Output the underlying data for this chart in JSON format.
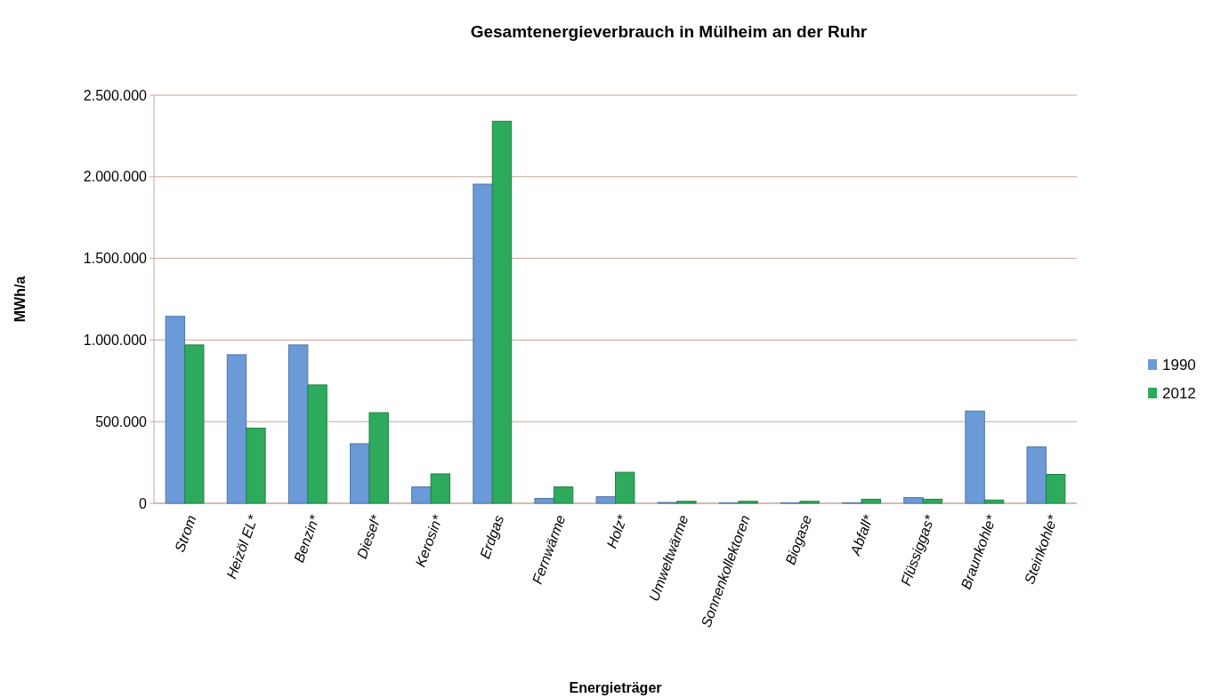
{
  "chart_data": {
    "type": "bar",
    "title": "Gesamtenergieverbrauch in Mülheim an der Ruhr",
    "xlabel": "Energieträger",
    "ylabel": "MWh/a",
    "categories": [
      "Strom",
      "Heizöl EL*",
      "Benzin*",
      "Diesel*",
      "Kerosin*",
      "Erdgas",
      "Fernwärme",
      "Holz*",
      "Umweltwärme",
      "Sonnenkollektoren",
      "Biogase",
      "Abfall*",
      "Flüssiggas*",
      "Braunkohle*",
      "Steinkohle*"
    ],
    "series": [
      {
        "name": "1990",
        "color": "#6a9bd8",
        "values": [
          1145000,
          910000,
          970000,
          365000,
          100000,
          1955000,
          30000,
          40000,
          5000,
          3000,
          3000,
          3000,
          35000,
          565000,
          345000
        ]
      },
      {
        "name": "2012",
        "color": "#2eaa5c",
        "values": [
          970000,
          460000,
          725000,
          555000,
          180000,
          2340000,
          100000,
          190000,
          12000,
          12000,
          12000,
          25000,
          25000,
          20000,
          177000
        ]
      }
    ],
    "ylim": [
      0,
      2500000
    ],
    "yticks": [
      {
        "value": 0,
        "label": "0"
      },
      {
        "value": 500000,
        "label": "500.000"
      },
      {
        "value": 1000000,
        "label": "1.000.000"
      },
      {
        "value": 1500000,
        "label": "1.500.000"
      },
      {
        "value": 2000000,
        "label": "2.000.000"
      },
      {
        "value": 2500000,
        "label": "2.500.000"
      }
    ],
    "grid": "y",
    "legend": "right"
  }
}
